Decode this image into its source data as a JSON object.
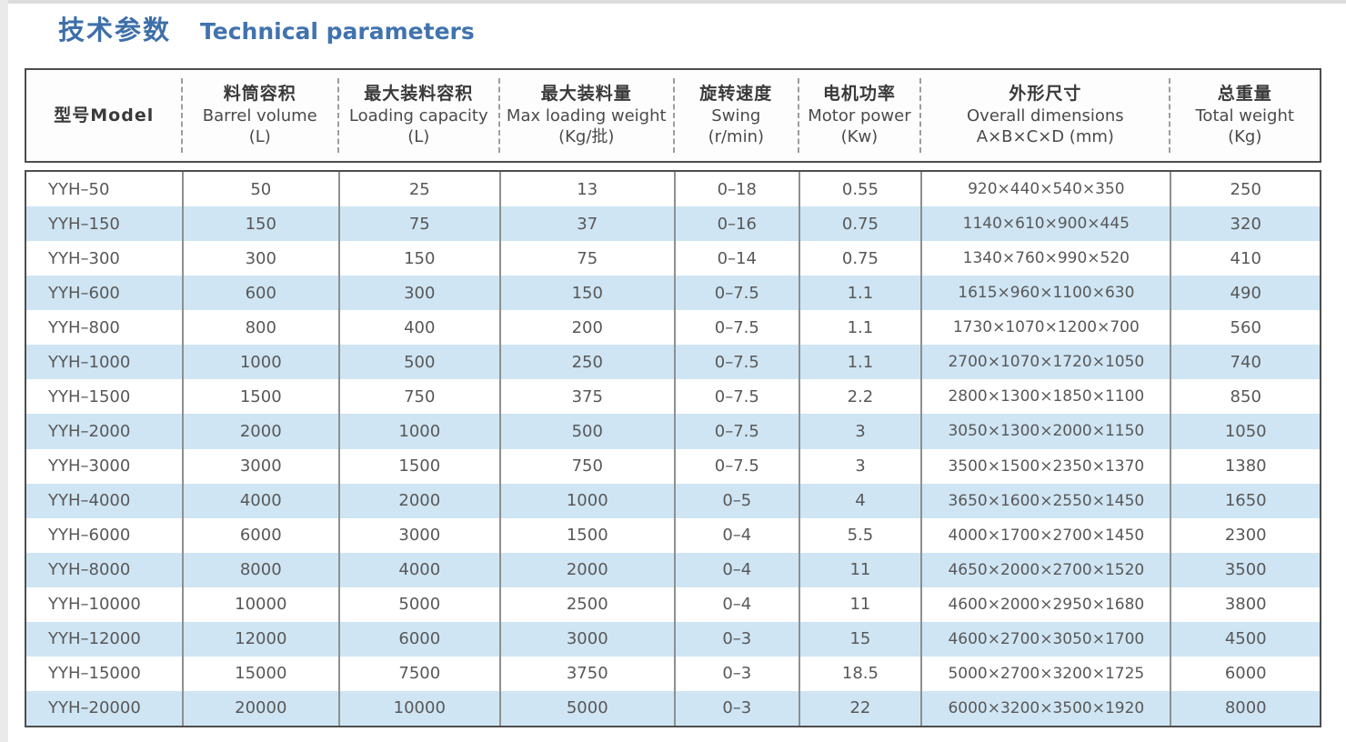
{
  "page": {
    "title_zh": "技术参数",
    "title_en": "Technical parameters"
  },
  "colors": {
    "title_blue": "#3e6fa9",
    "stripe_blue": "#cfe5f4",
    "border_dark": "#4e4e4e",
    "text_gray": "#585858"
  },
  "table": {
    "columns": [
      {
        "zh": "型号Model",
        "en": "",
        "unit": ""
      },
      {
        "zh": "料筒容积",
        "en": "Barrel volume",
        "unit": "(L)"
      },
      {
        "zh": "最大装料容积",
        "en": "Loading capacity",
        "unit": "(L)"
      },
      {
        "zh": "最大装料量",
        "en": "Max loading weight",
        "unit": "(Kg/批)"
      },
      {
        "zh": "旋转速度",
        "en": "Swing",
        "unit": "(r/min)"
      },
      {
        "zh": "电机功率",
        "en": "Motor power",
        "unit": "(Kw)"
      },
      {
        "zh": "外形尺寸",
        "en": "Overall dimensions",
        "unit": "A×B×C×D (mm)"
      },
      {
        "zh": "总重量",
        "en": "Total weight",
        "unit": "(Kg)"
      }
    ],
    "rows": [
      [
        "YYH–50",
        "50",
        "25",
        "13",
        "0–18",
        "0.55",
        "920×440×540×350",
        "250"
      ],
      [
        "YYH–150",
        "150",
        "75",
        "37",
        "0–16",
        "0.75",
        "1140×610×900×445",
        "320"
      ],
      [
        "YYH–300",
        "300",
        "150",
        "75",
        "0–14",
        "0.75",
        "1340×760×990×520",
        "410"
      ],
      [
        "YYH–600",
        "600",
        "300",
        "150",
        "0–7.5",
        "1.1",
        "1615×960×1100×630",
        "490"
      ],
      [
        "YYH–800",
        "800",
        "400",
        "200",
        "0–7.5",
        "1.1",
        "1730×1070×1200×700",
        "560"
      ],
      [
        "YYH–1000",
        "1000",
        "500",
        "250",
        "0–7.5",
        "1.1",
        "2700×1070×1720×1050",
        "740"
      ],
      [
        "YYH–1500",
        "1500",
        "750",
        "375",
        "0–7.5",
        "2.2",
        "2800×1300×1850×1100",
        "850"
      ],
      [
        "YYH–2000",
        "2000",
        "1000",
        "500",
        "0–7.5",
        "3",
        "3050×1300×2000×1150",
        "1050"
      ],
      [
        "YYH–3000",
        "3000",
        "1500",
        "750",
        "0–7.5",
        "3",
        "3500×1500×2350×1370",
        "1380"
      ],
      [
        "YYH–4000",
        "4000",
        "2000",
        "1000",
        "0–5",
        "4",
        "3650×1600×2550×1450",
        "1650"
      ],
      [
        "YYH–6000",
        "6000",
        "3000",
        "1500",
        "0–4",
        "5.5",
        "4000×1700×2700×1450",
        "2300"
      ],
      [
        "YYH–8000",
        "8000",
        "4000",
        "2000",
        "0–4",
        "11",
        "4650×2000×2700×1520",
        "3500"
      ],
      [
        "YYH–10000",
        "10000",
        "5000",
        "2500",
        "0–4",
        "11",
        "4600×2000×2950×1680",
        "3800"
      ],
      [
        "YYH–12000",
        "12000",
        "6000",
        "3000",
        "0–3",
        "15",
        "4600×2700×3050×1700",
        "4500"
      ],
      [
        "YYH–15000",
        "15000",
        "7500",
        "3750",
        "0–3",
        "18.5",
        "5000×2700×3200×1725",
        "6000"
      ],
      [
        "YYH–20000",
        "20000",
        "10000",
        "5000",
        "0–3",
        "22",
        "6000×3200×3500×1920",
        "8000"
      ]
    ]
  }
}
